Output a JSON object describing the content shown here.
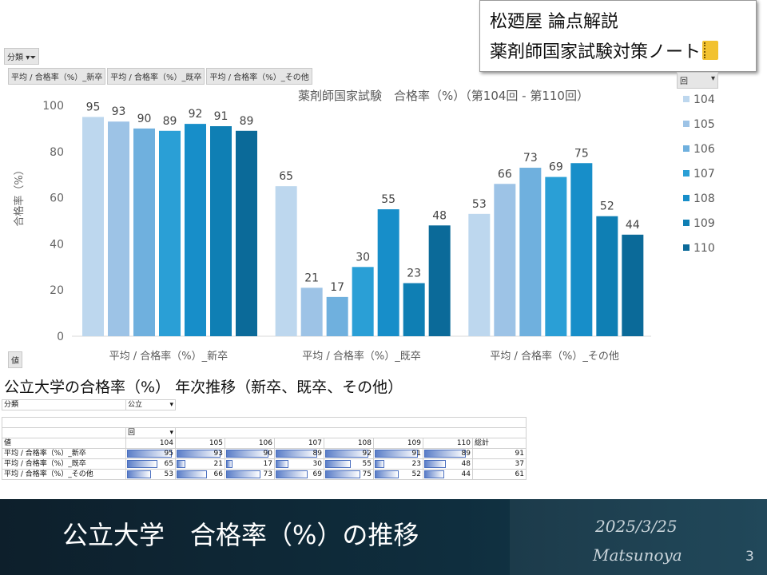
{
  "brand": {
    "line1": "松廼屋 論点解説",
    "line2": "薬剤師国家試験対策ノート"
  },
  "filters": {
    "bunrui": "分類",
    "series_buttons": [
      "平均 / 合格率（%）_新卒",
      "平均 / 合格率（%）_既卒",
      "平均 / 合格率（%）_その他"
    ],
    "kai": "回",
    "values": "値"
  },
  "colors": [
    "#bdd7ee",
    "#9dc3e6",
    "#6fb0de",
    "#2a9fd6",
    "#178ec9",
    "#0f7fb4",
    "#0b6a99"
  ],
  "chart_data": {
    "type": "bar",
    "title": "薬剤師国家試験　合格率（%）（第104回 - 第110回）",
    "ylabel": "合格率（%）",
    "xlabel": "",
    "ylim": [
      0,
      100
    ],
    "yticks": [
      0,
      20,
      40,
      60,
      80,
      100
    ],
    "categories": [
      "平均 / 合格率（%）_新卒",
      "平均 / 合格率（%）_既卒",
      "平均 / 合格率（%）_その他"
    ],
    "legend_position": "right",
    "grid": false,
    "series": [
      {
        "name": "104",
        "values": [
          95,
          65,
          53
        ]
      },
      {
        "name": "105",
        "values": [
          93,
          21,
          66
        ]
      },
      {
        "name": "106",
        "values": [
          90,
          17,
          73
        ]
      },
      {
        "name": "107",
        "values": [
          89,
          30,
          69
        ]
      },
      {
        "name": "108",
        "values": [
          92,
          55,
          75
        ]
      },
      {
        "name": "109",
        "values": [
          91,
          23,
          52
        ]
      },
      {
        "name": "110",
        "values": [
          89,
          48,
          44
        ]
      }
    ]
  },
  "subheading": "公立大学の合格率（%） 年次推移（新卒、既卒、その他）",
  "pivot": {
    "filter_label": "分類",
    "filter_value": "公立",
    "col_field": "回",
    "values_label": "値",
    "total_label": "総計",
    "columns": [
      "104",
      "105",
      "106",
      "107",
      "108",
      "109",
      "110"
    ],
    "rows": [
      {
        "label": "平均 / 合格率（%）_新卒",
        "values": [
          95,
          93,
          90,
          89,
          92,
          91,
          89
        ],
        "total": 91
      },
      {
        "label": "平均 / 合格率（%）_既卒",
        "values": [
          65,
          21,
          17,
          30,
          55,
          23,
          48
        ],
        "total": 37
      },
      {
        "label": "平均 / 合格率（%）_その他",
        "values": [
          53,
          66,
          73,
          69,
          75,
          52,
          44
        ],
        "total": 61
      }
    ]
  },
  "footer": {
    "title": "公立大学　合格率（%）の推移",
    "date": "2025/3/25",
    "author": "Matsunoya",
    "page": "3"
  }
}
